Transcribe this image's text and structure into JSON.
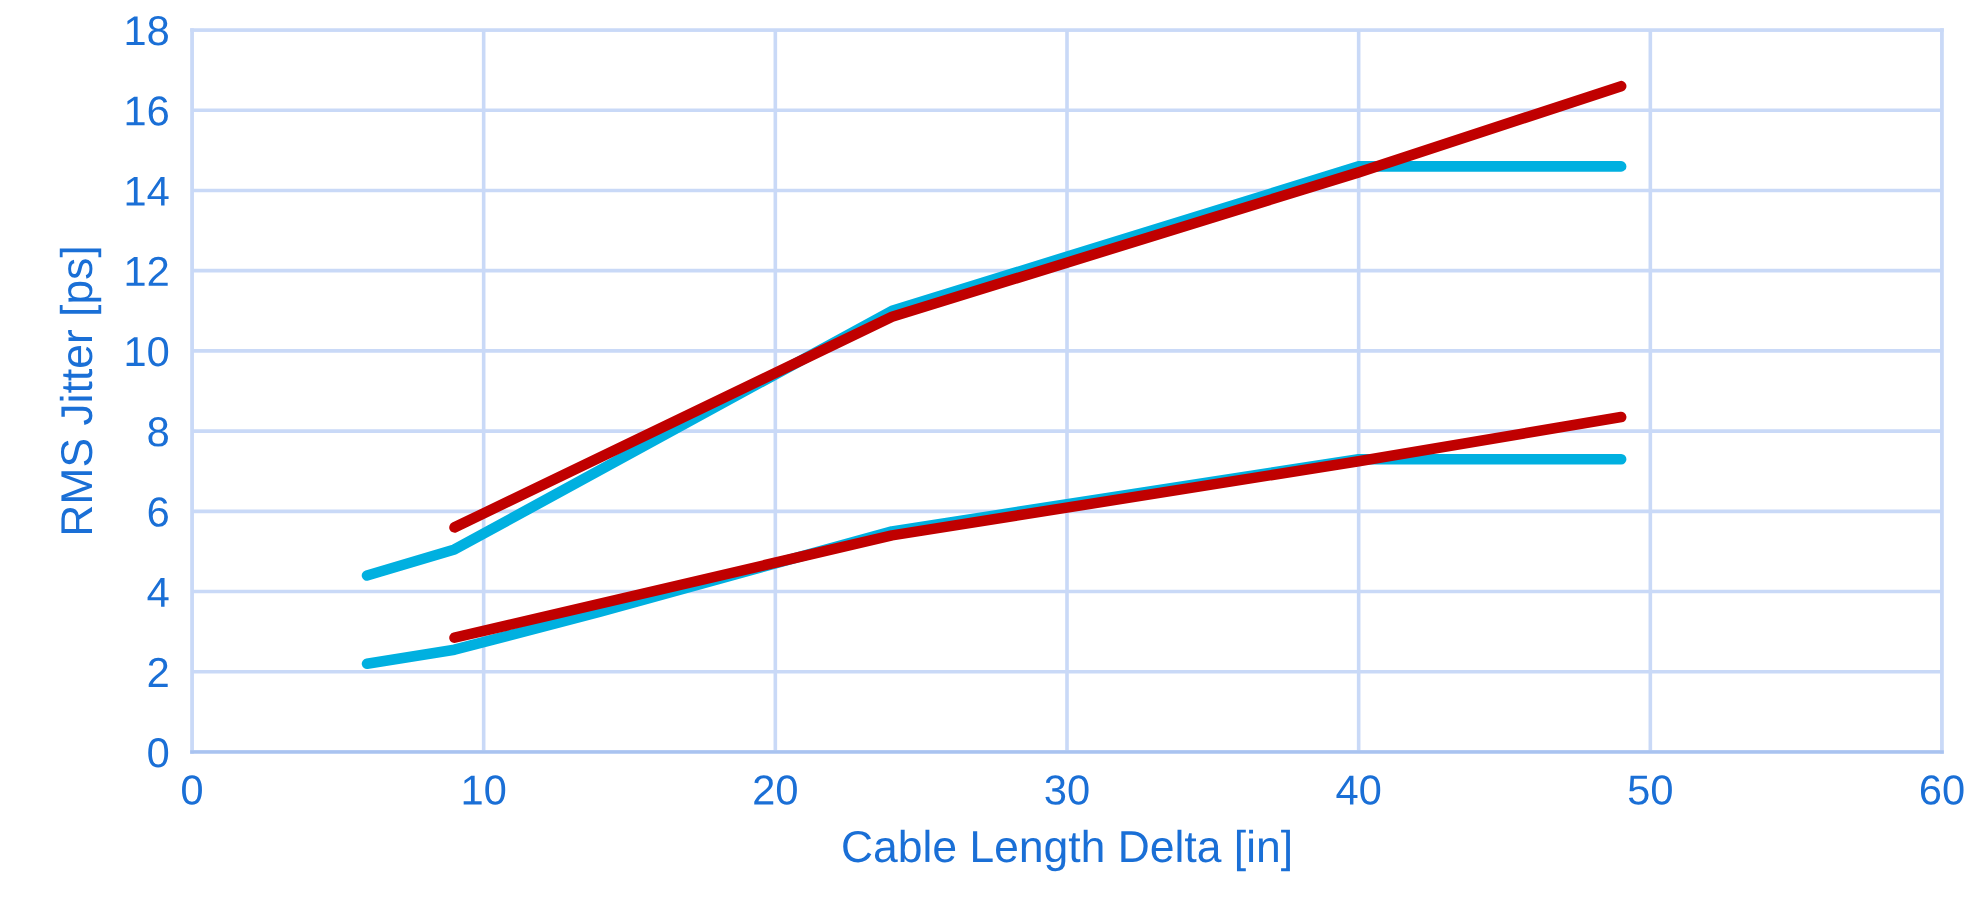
{
  "chart_data": {
    "type": "line",
    "xlabel": "Cable Length Delta [in]",
    "ylabel": "RMS Jitter [ps]",
    "xlim": [
      0,
      60
    ],
    "xticks": [
      0,
      10,
      20,
      30,
      40,
      50,
      60
    ],
    "ylim": [
      0,
      18
    ],
    "yticks": [
      0,
      2,
      4,
      6,
      8,
      10,
      12,
      14,
      16,
      18
    ],
    "grid": true,
    "legend": false,
    "marker": "none",
    "line_style": "solid",
    "series": [
      {
        "color": "#00b0e0",
        "x": [
          6,
          9,
          24,
          40,
          49
        ],
        "values": [
          4.4,
          5.05,
          11.0,
          14.6,
          14.6
        ]
      },
      {
        "color": "#c00000",
        "x": [
          9,
          24,
          40,
          49
        ],
        "values": [
          5.6,
          10.85,
          14.45,
          16.6
        ]
      },
      {
        "color": "#00b0e0",
        "x": [
          6,
          9,
          14,
          24,
          40,
          49
        ],
        "values": [
          2.2,
          2.55,
          3.5,
          5.5,
          7.3,
          7.3
        ]
      },
      {
        "color": "#c00000",
        "x": [
          9,
          24,
          40,
          49
        ],
        "values": [
          2.85,
          5.4,
          7.25,
          8.35
        ]
      }
    ]
  }
}
